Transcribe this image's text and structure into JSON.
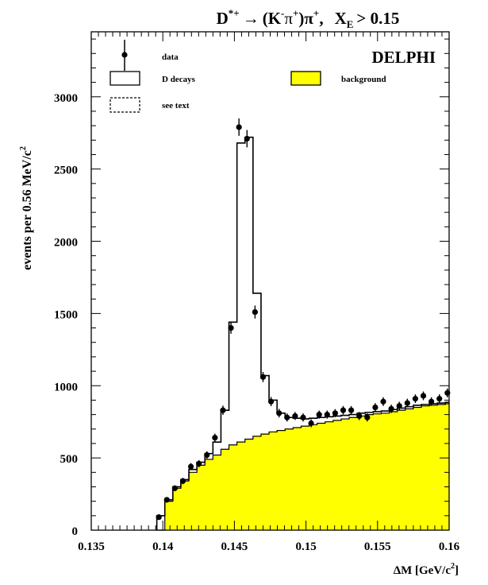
{
  "chart_data": {
    "type": "histogram",
    "title_parts": {
      "d": "D",
      "d_sup": "*+",
      "arrow": "→",
      "open": "(K",
      "k_sup": "-",
      "pi": "π",
      "pi_sup": "+",
      "close": ")π",
      "pi2_sup": "+",
      "sep": ",",
      "x": "X",
      "x_sub": "E",
      "cut": "> 0.15"
    },
    "experiment": "DELPHI",
    "xlabel_main": "ΔM [GeV/c",
    "xlabel_sup": "2",
    "xlabel_end": "]",
    "ylabel_main": "events per  0.56 MeV/c",
    "ylabel_sup": "2",
    "xlim": [
      0.135,
      0.16
    ],
    "ylim": [
      0,
      3450
    ],
    "x_ticks": [
      {
        "value": 0.135,
        "label": "0.135"
      },
      {
        "value": 0.14,
        "label": "0.14"
      },
      {
        "value": 0.145,
        "label": "0.145"
      },
      {
        "value": 0.15,
        "label": "0.15"
      },
      {
        "value": 0.155,
        "label": "0.155"
      },
      {
        "value": 0.16,
        "label": "0.16"
      }
    ],
    "y_ticks": [
      {
        "value": 0,
        "label": "0"
      },
      {
        "value": 500,
        "label": "500"
      },
      {
        "value": 1000,
        "label": "1000"
      },
      {
        "value": 1500,
        "label": "1500"
      },
      {
        "value": 2000,
        "label": "2000"
      },
      {
        "value": 2500,
        "label": "2500"
      },
      {
        "value": 3000,
        "label": "3000"
      }
    ],
    "legend": [
      {
        "key": "data",
        "label": "data"
      },
      {
        "key": "total",
        "label": "D decays"
      },
      {
        "key": "other",
        "label": "see text"
      },
      {
        "key": "background",
        "label": "background"
      }
    ],
    "colors": {
      "background_fill": "#ffff00",
      "line": "#000000"
    },
    "bin_width": 0.00056,
    "bin_start": 0.13958,
    "background": [
      0,
      200,
      290,
      340,
      400,
      450,
      490,
      520,
      560,
      590,
      610,
      630,
      650,
      665,
      680,
      690,
      700,
      710,
      720,
      730,
      740,
      750,
      760,
      770,
      780,
      790,
      800,
      805,
      810,
      820,
      830,
      840,
      850,
      860,
      865,
      870,
      875,
      880,
      885,
      890,
      895,
      900,
      905,
      910,
      920
    ],
    "total": [
      100,
      210,
      300,
      350,
      420,
      470,
      530,
      610,
      830,
      1440,
      2680,
      2720,
      1640,
      1070,
      900,
      810,
      780,
      775,
      770,
      775,
      780,
      785,
      790,
      795,
      800,
      810,
      815,
      820,
      825,
      835,
      845,
      855,
      865,
      870,
      875,
      880,
      885,
      890,
      895,
      900,
      905,
      910,
      915,
      920,
      930
    ],
    "data_points": [
      {
        "x": 0.13972,
        "y": 90,
        "err": 15
      },
      {
        "x": 0.14028,
        "y": 210,
        "err": 18
      },
      {
        "x": 0.14084,
        "y": 290,
        "err": 20
      },
      {
        "x": 0.1414,
        "y": 340,
        "err": 22
      },
      {
        "x": 0.14196,
        "y": 440,
        "err": 24
      },
      {
        "x": 0.14252,
        "y": 460,
        "err": 25
      },
      {
        "x": 0.14308,
        "y": 520,
        "err": 26
      },
      {
        "x": 0.14364,
        "y": 640,
        "err": 28
      },
      {
        "x": 0.1442,
        "y": 830,
        "err": 32
      },
      {
        "x": 0.14476,
        "y": 1400,
        "err": 40
      },
      {
        "x": 0.14532,
        "y": 2790,
        "err": 60
      },
      {
        "x": 0.14588,
        "y": 2710,
        "err": 60
      },
      {
        "x": 0.14644,
        "y": 1510,
        "err": 45
      },
      {
        "x": 0.147,
        "y": 1060,
        "err": 35
      },
      {
        "x": 0.14756,
        "y": 890,
        "err": 32
      },
      {
        "x": 0.14812,
        "y": 810,
        "err": 30
      },
      {
        "x": 0.14868,
        "y": 780,
        "err": 28
      },
      {
        "x": 0.14924,
        "y": 790,
        "err": 28
      },
      {
        "x": 0.1498,
        "y": 780,
        "err": 28
      },
      {
        "x": 0.15036,
        "y": 740,
        "err": 28
      },
      {
        "x": 0.15092,
        "y": 800,
        "err": 28
      },
      {
        "x": 0.15148,
        "y": 800,
        "err": 28
      },
      {
        "x": 0.15204,
        "y": 810,
        "err": 28
      },
      {
        "x": 0.1526,
        "y": 830,
        "err": 29
      },
      {
        "x": 0.15316,
        "y": 830,
        "err": 29
      },
      {
        "x": 0.15372,
        "y": 790,
        "err": 28
      },
      {
        "x": 0.15428,
        "y": 780,
        "err": 28
      },
      {
        "x": 0.15484,
        "y": 850,
        "err": 29
      },
      {
        "x": 0.1554,
        "y": 890,
        "err": 30
      },
      {
        "x": 0.15596,
        "y": 840,
        "err": 29
      },
      {
        "x": 0.15652,
        "y": 860,
        "err": 29
      },
      {
        "x": 0.15708,
        "y": 880,
        "err": 30
      },
      {
        "x": 0.15764,
        "y": 910,
        "err": 30
      },
      {
        "x": 0.1582,
        "y": 930,
        "err": 30
      },
      {
        "x": 0.15876,
        "y": 890,
        "err": 30
      },
      {
        "x": 0.15932,
        "y": 910,
        "err": 30
      },
      {
        "x": 0.15988,
        "y": 950,
        "err": 31
      }
    ]
  }
}
